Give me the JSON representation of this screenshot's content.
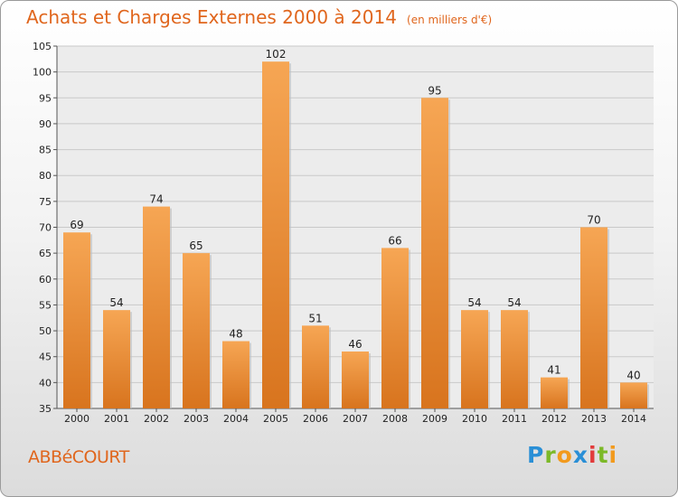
{
  "title": "Achats et Charges Externes 2000 à 2014",
  "unit": "(en milliers d'€)",
  "commune": "ABBéCOURT",
  "brand": "Proxiti",
  "colors": {
    "title": "#e0661d",
    "bar_top": "#f6a654",
    "bar_bottom": "#d8741e"
  },
  "chart_data": {
    "type": "bar",
    "categories": [
      "2000",
      "2001",
      "2002",
      "2003",
      "2004",
      "2005",
      "2006",
      "2007",
      "2008",
      "2009",
      "2010",
      "2011",
      "2012",
      "2013",
      "2014"
    ],
    "values": [
      69,
      54,
      74,
      65,
      48,
      102,
      51,
      46,
      66,
      95,
      54,
      54,
      41,
      70,
      40
    ],
    "title": "Achats et Charges Externes 2000 à 2014",
    "xlabel": "",
    "ylabel": "",
    "ylim": [
      35,
      105
    ],
    "yticks": [
      35,
      40,
      45,
      50,
      55,
      60,
      65,
      70,
      75,
      80,
      85,
      90,
      95,
      100,
      105
    ],
    "grid": true
  }
}
